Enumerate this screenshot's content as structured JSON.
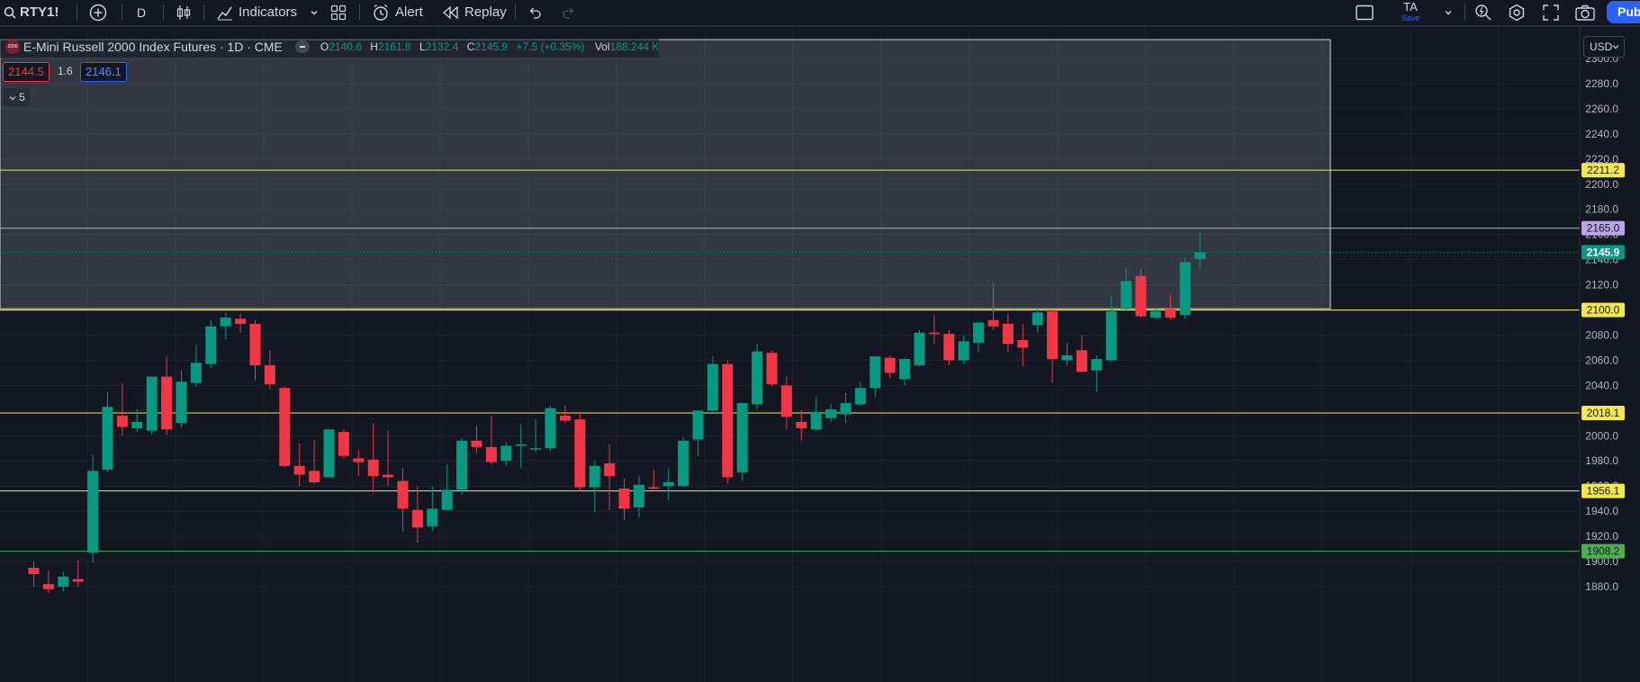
{
  "toolbar": {
    "symbol": "RTY1!",
    "interval": "D",
    "indicators_label": "Indicators",
    "alert_label": "Alert",
    "replay_label": "Replay",
    "layout_name": "TA",
    "layout_save": "Save",
    "publish_label": "Pub"
  },
  "legend": {
    "badge": "2000",
    "title": "E-Mini Russell 2000 Index Futures · 1D · CME",
    "o_label": "O",
    "o": "2140.6",
    "h_label": "H",
    "h": "2161.8",
    "l_label": "L",
    "l": "2132.4",
    "c_label": "C",
    "c": "2145.9",
    "change": "+7.5 (+0.35%)",
    "vol_label": "Vol",
    "vol": "188.244 K",
    "bid": "2144.5",
    "spread": "1.6",
    "ask": "2146.1",
    "collapsed_count": "5"
  },
  "currency": "USD",
  "colors": {
    "background": "#131722",
    "up": "#089981",
    "down": "#f23645",
    "hline_yellow": "#f3e94b",
    "hline_green": "#4caf50",
    "hline_lavender": "#b9a5e8",
    "accent": "#2962ff"
  },
  "chart_data": {
    "type": "candlestick",
    "title": "E-Mini Russell 2000 Index Futures · 1D · CME",
    "ylim": [
      1875,
      2315
    ],
    "y_ticks": [
      1880,
      1900,
      1920,
      1940,
      1960,
      1980,
      2000,
      2020,
      2040,
      2060,
      2080,
      2100,
      2120,
      2140,
      2160,
      2180,
      2200,
      2220,
      2240,
      2260,
      2280,
      2300
    ],
    "grid": true,
    "candles": [
      {
        "o": 1895,
        "h": 1900,
        "l": 1880,
        "c": 1890
      },
      {
        "o": 1882,
        "h": 1893,
        "l": 1875,
        "c": 1878
      },
      {
        "o": 1880,
        "h": 1892,
        "l": 1876,
        "c": 1888
      },
      {
        "o": 1886,
        "h": 1901,
        "l": 1880,
        "c": 1884
      },
      {
        "o": 1907,
        "h": 1985,
        "l": 1899,
        "c": 1972
      },
      {
        "o": 1973,
        "h": 2035,
        "l": 1971,
        "c": 2023
      },
      {
        "o": 2016,
        "h": 2042,
        "l": 2000,
        "c": 2007
      },
      {
        "o": 2006,
        "h": 2021,
        "l": 2003,
        "c": 2011
      },
      {
        "o": 2004,
        "h": 2047,
        "l": 2001,
        "c": 2047
      },
      {
        "o": 2047,
        "h": 2063,
        "l": 2001,
        "c": 2005
      },
      {
        "o": 2010,
        "h": 2052,
        "l": 2007,
        "c": 2043
      },
      {
        "o": 2042,
        "h": 2072,
        "l": 2039,
        "c": 2058
      },
      {
        "o": 2057,
        "h": 2092,
        "l": 2054,
        "c": 2087
      },
      {
        "o": 2087,
        "h": 2098,
        "l": 2077,
        "c": 2094
      },
      {
        "o": 2093,
        "h": 2097,
        "l": 2082,
        "c": 2089
      },
      {
        "o": 2089,
        "h": 2092,
        "l": 2044,
        "c": 2056
      },
      {
        "o": 2056,
        "h": 2068,
        "l": 2037,
        "c": 2041
      },
      {
        "o": 2038,
        "h": 2039,
        "l": 1975,
        "c": 1976
      },
      {
        "o": 1976,
        "h": 1994,
        "l": 1960,
        "c": 1969
      },
      {
        "o": 1972,
        "h": 1996,
        "l": 1962,
        "c": 1963
      },
      {
        "o": 1967,
        "h": 2005,
        "l": 1967,
        "c": 2005
      },
      {
        "o": 2003,
        "h": 2005,
        "l": 1982,
        "c": 1984
      },
      {
        "o": 1982,
        "h": 1989,
        "l": 1968,
        "c": 1979
      },
      {
        "o": 1981,
        "h": 2010,
        "l": 1955,
        "c": 1968
      },
      {
        "o": 1969,
        "h": 2004,
        "l": 1960,
        "c": 1967
      },
      {
        "o": 1964,
        "h": 1974,
        "l": 1924,
        "c": 1942
      },
      {
        "o": 1941,
        "h": 1960,
        "l": 1915,
        "c": 1927
      },
      {
        "o": 1928,
        "h": 1960,
        "l": 1924,
        "c": 1942
      },
      {
        "o": 1941,
        "h": 1977,
        "l": 1941,
        "c": 1957
      },
      {
        "o": 1957,
        "h": 1998,
        "l": 1953,
        "c": 1996
      },
      {
        "o": 1996,
        "h": 2008,
        "l": 1986,
        "c": 1991
      },
      {
        "o": 1991,
        "h": 2016,
        "l": 1977,
        "c": 1979
      },
      {
        "o": 1980,
        "h": 1995,
        "l": 1976,
        "c": 1992
      },
      {
        "o": 1992,
        "h": 2009,
        "l": 1974,
        "c": 1993
      },
      {
        "o": 1990,
        "h": 2013,
        "l": 1987,
        "c": 1990
      },
      {
        "o": 1990,
        "h": 2024,
        "l": 1988,
        "c": 2022
      },
      {
        "o": 2016,
        "h": 2024,
        "l": 2010,
        "c": 2012
      },
      {
        "o": 2013,
        "h": 2019,
        "l": 1956,
        "c": 1959
      },
      {
        "o": 1959,
        "h": 1980,
        "l": 1939,
        "c": 1976
      },
      {
        "o": 1978,
        "h": 1993,
        "l": 1941,
        "c": 1968
      },
      {
        "o": 1958,
        "h": 1966,
        "l": 1933,
        "c": 1942
      },
      {
        "o": 1943,
        "h": 1968,
        "l": 1935,
        "c": 1961
      },
      {
        "o": 1959,
        "h": 1973,
        "l": 1957,
        "c": 1958
      },
      {
        "o": 1960,
        "h": 1974,
        "l": 1949,
        "c": 1963
      },
      {
        "o": 1960,
        "h": 1999,
        "l": 1959,
        "c": 1996
      },
      {
        "o": 1997,
        "h": 2020,
        "l": 1984,
        "c": 2020
      },
      {
        "o": 2020,
        "h": 2063,
        "l": 2019,
        "c": 2057
      },
      {
        "o": 2057,
        "h": 2060,
        "l": 1962,
        "c": 1967
      },
      {
        "o": 1971,
        "h": 2026,
        "l": 1964,
        "c": 2026
      },
      {
        "o": 2025,
        "h": 2073,
        "l": 2021,
        "c": 2067
      },
      {
        "o": 2066,
        "h": 2068,
        "l": 2039,
        "c": 2041
      },
      {
        "o": 2040,
        "h": 2047,
        "l": 2005,
        "c": 2015
      },
      {
        "o": 2011,
        "h": 2020,
        "l": 1996,
        "c": 2006
      },
      {
        "o": 2005,
        "h": 2031,
        "l": 2004,
        "c": 2019
      },
      {
        "o": 2014,
        "h": 2025,
        "l": 2011,
        "c": 2021
      },
      {
        "o": 2017,
        "h": 2034,
        "l": 2010,
        "c": 2026
      },
      {
        "o": 2025,
        "h": 2043,
        "l": 2024,
        "c": 2038
      },
      {
        "o": 2038,
        "h": 2062,
        "l": 2031,
        "c": 2063
      },
      {
        "o": 2062,
        "h": 2064,
        "l": 2046,
        "c": 2050
      },
      {
        "o": 2045,
        "h": 2062,
        "l": 2040,
        "c": 2061
      },
      {
        "o": 2056,
        "h": 2084,
        "l": 2055,
        "c": 2082
      },
      {
        "o": 2082,
        "h": 2096,
        "l": 2073,
        "c": 2081
      },
      {
        "o": 2081,
        "h": 2084,
        "l": 2056,
        "c": 2060
      },
      {
        "o": 2060,
        "h": 2080,
        "l": 2057,
        "c": 2075
      },
      {
        "o": 2074,
        "h": 2090,
        "l": 2066,
        "c": 2090
      },
      {
        "o": 2092,
        "h": 2121,
        "l": 2084,
        "c": 2087
      },
      {
        "o": 2089,
        "h": 2097,
        "l": 2066,
        "c": 2073
      },
      {
        "o": 2076,
        "h": 2089,
        "l": 2055,
        "c": 2070
      },
      {
        "o": 2088,
        "h": 2102,
        "l": 2082,
        "c": 2098
      },
      {
        "o": 2099,
        "h": 2101,
        "l": 2042,
        "c": 2061
      },
      {
        "o": 2060,
        "h": 2074,
        "l": 2056,
        "c": 2064
      },
      {
        "o": 2068,
        "h": 2080,
        "l": 2050,
        "c": 2051
      },
      {
        "o": 2052,
        "h": 2064,
        "l": 2035,
        "c": 2061
      },
      {
        "o": 2060,
        "h": 2112,
        "l": 2059,
        "c": 2099
      },
      {
        "o": 2101,
        "h": 2133,
        "l": 2099,
        "c": 2123
      },
      {
        "o": 2127,
        "h": 2133,
        "l": 2094,
        "c": 2095
      },
      {
        "o": 2094,
        "h": 2102,
        "l": 2092,
        "c": 2099
      },
      {
        "o": 2101,
        "h": 2112,
        "l": 2092,
        "c": 2094
      },
      {
        "o": 2096,
        "h": 2141,
        "l": 2093,
        "c": 2138
      },
      {
        "o": 2140.6,
        "h": 2161.8,
        "l": 2132.4,
        "c": 2145.9
      }
    ],
    "horizontal_lines": [
      {
        "price": 2211.2,
        "label": "2211.2",
        "color": "yellow"
      },
      {
        "price": 2165.0,
        "label": "2165.0",
        "color": "lavender"
      },
      {
        "price": 2100.0,
        "label": "2100.0",
        "color": "yellow"
      },
      {
        "price": 2018.1,
        "label": "2018.1",
        "color": "yellow"
      },
      {
        "price": 1956.1,
        "label": "1956.1",
        "color": "yellow"
      },
      {
        "price": 1908.2,
        "label": "1908.2",
        "color": "green"
      }
    ],
    "zone": {
      "from": 2101,
      "to": 2315
    },
    "last_price": {
      "price": 2145.9,
      "label": "2145.9"
    }
  }
}
